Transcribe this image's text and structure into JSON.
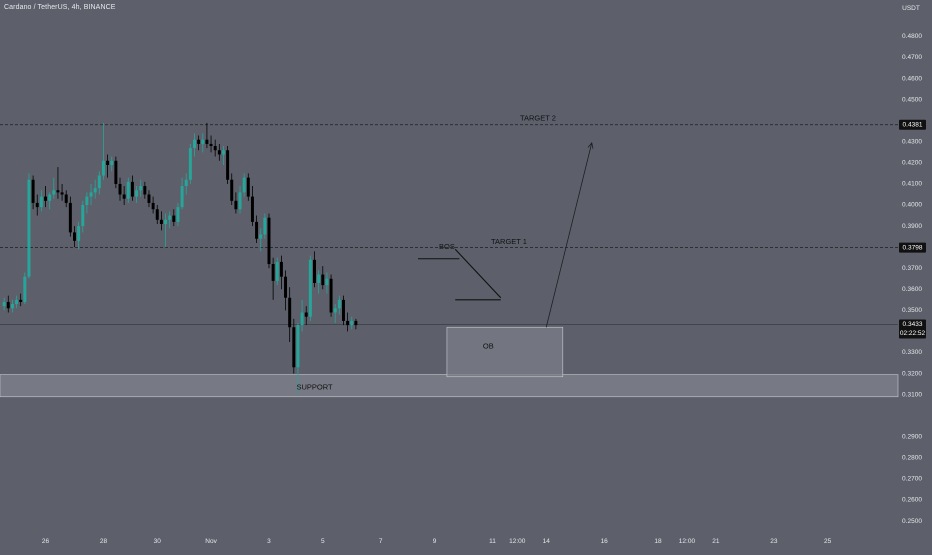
{
  "header": {
    "symbol_title": "Cardano / TetherUS, 4h, BINANCE"
  },
  "colors": {
    "background": "#5d606b",
    "up_candle": "#26a69a",
    "down_candle": "#000000",
    "text": "#e6e7ea",
    "zone_fill": "#7b7e88",
    "price_tag_bg": "#111111"
  },
  "chart_data": {
    "type": "candlestick",
    "y_axis": {
      "unit_label": "USDT",
      "ylim": [
        0.2453,
        0.4973
      ],
      "ticks": [
        "0.4800",
        "0.4700",
        "0.4600",
        "0.4500",
        "0.4300",
        "0.4200",
        "0.4100",
        "0.4000",
        "0.3900",
        "0.3700",
        "0.3600",
        "0.3500",
        "0.3300",
        "0.3200",
        "0.3100",
        "0.2900",
        "0.2800",
        "0.2700",
        "0.2600",
        "0.2500"
      ],
      "tick_values": [
        0.48,
        0.47,
        0.46,
        0.45,
        0.43,
        0.42,
        0.41,
        0.4,
        0.39,
        0.37,
        0.36,
        0.35,
        0.33,
        0.32,
        0.31,
        0.29,
        0.28,
        0.27,
        0.26,
        0.25
      ]
    },
    "x_axis": {
      "range": [
        -93,
        124
      ],
      "labels": [
        "26",
        "28",
        "30",
        "Nov",
        "3",
        "5",
        "7",
        "9",
        "11",
        "12:00",
        "14",
        "16",
        "18",
        "12:00",
        "21",
        "23",
        "25"
      ],
      "label_positions": [
        -82,
        -68,
        -55,
        -42,
        -28,
        -15,
        -1,
        12,
        26,
        32,
        39,
        53,
        66,
        73,
        80,
        94,
        107
      ]
    },
    "price_levels": [
      {
        "label": "0.4381",
        "value": 0.4381,
        "style": "dashed"
      },
      {
        "label": "0.3798",
        "value": 0.3798,
        "style": "dashed"
      },
      {
        "label": "0.3433",
        "value": 0.3433,
        "style": "solid",
        "sublabel": "02:22:52"
      }
    ],
    "annotations": [
      {
        "text": "TARGET 2",
        "x": 37,
        "y": 0.441
      },
      {
        "text": "TARGET 1",
        "x": 30,
        "y": 0.3825
      },
      {
        "text": "BOS",
        "x": 15,
        "y": 0.38
      },
      {
        "text": "OB",
        "x": 25,
        "y": 0.3328
      },
      {
        "text": "SUPPORT",
        "x": -17,
        "y": 0.3134
      }
    ],
    "zones": [
      {
        "name": "SUPPORT",
        "x0": -93,
        "x1": 124,
        "y0": 0.309,
        "y1": 0.3195
      },
      {
        "name": "OB",
        "x0": 15,
        "x1": 43,
        "y0": 0.3185,
        "y1": 0.342
      }
    ],
    "drawings": {
      "bos_line": {
        "x0": 8,
        "x1": 18,
        "y": 0.3745
      },
      "wedge_top": {
        "x0": 17,
        "y0": 0.379,
        "x1": 28,
        "y1": 0.356
      },
      "wedge_bottom": {
        "x0": 17,
        "y0": 0.355,
        "x1": 28,
        "y1": 0.355
      },
      "arrow": {
        "x0": 39,
        "y0": 0.342,
        "x1": 50,
        "y1": 0.4295
      }
    },
    "candles": [
      [
        0.352,
        0.356,
        0.35,
        0.354
      ],
      [
        0.354,
        0.357,
        0.349,
        0.351
      ],
      [
        0.351,
        0.355,
        0.349,
        0.353
      ],
      [
        0.353,
        0.357,
        0.351,
        0.355
      ],
      [
        0.355,
        0.358,
        0.352,
        0.354
      ],
      [
        0.354,
        0.368,
        0.353,
        0.366
      ],
      [
        0.366,
        0.415,
        0.365,
        0.412
      ],
      [
        0.412,
        0.414,
        0.398,
        0.401
      ],
      [
        0.401,
        0.405,
        0.395,
        0.399
      ],
      [
        0.399,
        0.407,
        0.397,
        0.404
      ],
      [
        0.404,
        0.409,
        0.399,
        0.402
      ],
      [
        0.402,
        0.406,
        0.398,
        0.405
      ],
      [
        0.405,
        0.413,
        0.403,
        0.407
      ],
      [
        0.407,
        0.418,
        0.403,
        0.406
      ],
      [
        0.406,
        0.41,
        0.402,
        0.405
      ],
      [
        0.405,
        0.407,
        0.399,
        0.401
      ],
      [
        0.401,
        0.404,
        0.385,
        0.387
      ],
      [
        0.387,
        0.39,
        0.38,
        0.383
      ],
      [
        0.383,
        0.392,
        0.379,
        0.39
      ],
      [
        0.39,
        0.402,
        0.387,
        0.4
      ],
      [
        0.4,
        0.406,
        0.396,
        0.404
      ],
      [
        0.404,
        0.41,
        0.4,
        0.406
      ],
      [
        0.406,
        0.412,
        0.403,
        0.408
      ],
      [
        0.408,
        0.416,
        0.405,
        0.414
      ],
      [
        0.414,
        0.439,
        0.412,
        0.421
      ],
      [
        0.421,
        0.424,
        0.413,
        0.419
      ],
      [
        0.419,
        0.423,
        0.416,
        0.421
      ],
      [
        0.421,
        0.423,
        0.408,
        0.41
      ],
      [
        0.41,
        0.413,
        0.402,
        0.405
      ],
      [
        0.405,
        0.409,
        0.4,
        0.403
      ],
      [
        0.403,
        0.413,
        0.401,
        0.411
      ],
      [
        0.411,
        0.414,
        0.402,
        0.404
      ],
      [
        0.404,
        0.409,
        0.401,
        0.407
      ],
      [
        0.407,
        0.412,
        0.404,
        0.409
      ],
      [
        0.409,
        0.411,
        0.403,
        0.405
      ],
      [
        0.405,
        0.407,
        0.399,
        0.401
      ],
      [
        0.401,
        0.404,
        0.396,
        0.398
      ],
      [
        0.398,
        0.4,
        0.391,
        0.393
      ],
      [
        0.393,
        0.397,
        0.388,
        0.391
      ],
      [
        0.391,
        0.396,
        0.38,
        0.393
      ],
      [
        0.393,
        0.397,
        0.389,
        0.395
      ],
      [
        0.395,
        0.398,
        0.39,
        0.392
      ],
      [
        0.392,
        0.401,
        0.39,
        0.399
      ],
      [
        0.399,
        0.413,
        0.398,
        0.409
      ],
      [
        0.409,
        0.415,
        0.405,
        0.412
      ],
      [
        0.412,
        0.429,
        0.41,
        0.427
      ],
      [
        0.427,
        0.434,
        0.423,
        0.431
      ],
      [
        0.431,
        0.433,
        0.426,
        0.429
      ],
      [
        0.429,
        0.434,
        0.425,
        0.431
      ],
      [
        0.431,
        0.439,
        0.427,
        0.429
      ],
      [
        0.429,
        0.433,
        0.425,
        0.428
      ],
      [
        0.428,
        0.431,
        0.423,
        0.426
      ],
      [
        0.426,
        0.429,
        0.421,
        0.424
      ],
      [
        0.424,
        0.428,
        0.419,
        0.426
      ],
      [
        0.426,
        0.428,
        0.41,
        0.412
      ],
      [
        0.412,
        0.415,
        0.4,
        0.402
      ],
      [
        0.402,
        0.406,
        0.396,
        0.398
      ],
      [
        0.398,
        0.409,
        0.396,
        0.406
      ],
      [
        0.406,
        0.415,
        0.404,
        0.413
      ],
      [
        0.413,
        0.415,
        0.402,
        0.404
      ],
      [
        0.404,
        0.409,
        0.39,
        0.392
      ],
      [
        0.392,
        0.395,
        0.382,
        0.384
      ],
      [
        0.384,
        0.389,
        0.378,
        0.386
      ],
      [
        0.386,
        0.396,
        0.384,
        0.394
      ],
      [
        0.394,
        0.396,
        0.37,
        0.372
      ],
      [
        0.372,
        0.375,
        0.355,
        0.364
      ],
      [
        0.364,
        0.375,
        0.362,
        0.373
      ],
      [
        0.373,
        0.376,
        0.36,
        0.366
      ],
      [
        0.366,
        0.369,
        0.35,
        0.356
      ],
      [
        0.356,
        0.361,
        0.335,
        0.342
      ],
      [
        0.342,
        0.346,
        0.32,
        0.323
      ],
      [
        0.323,
        0.344,
        0.31,
        0.343
      ],
      [
        0.343,
        0.355,
        0.34,
        0.349
      ],
      [
        0.349,
        0.352,
        0.343,
        0.347
      ],
      [
        0.347,
        0.376,
        0.345,
        0.374
      ],
      [
        0.374,
        0.378,
        0.361,
        0.363
      ],
      [
        0.363,
        0.369,
        0.358,
        0.367
      ],
      [
        0.367,
        0.371,
        0.36,
        0.362
      ],
      [
        0.362,
        0.368,
        0.358,
        0.365
      ],
      [
        0.365,
        0.367,
        0.347,
        0.349
      ],
      [
        0.349,
        0.353,
        0.344,
        0.351
      ],
      [
        0.351,
        0.357,
        0.348,
        0.355
      ],
      [
        0.355,
        0.357,
        0.343,
        0.345
      ],
      [
        0.345,
        0.349,
        0.34,
        0.343
      ],
      [
        0.343,
        0.347,
        0.341,
        0.345
      ],
      [
        0.345,
        0.346,
        0.341,
        0.343
      ]
    ]
  }
}
